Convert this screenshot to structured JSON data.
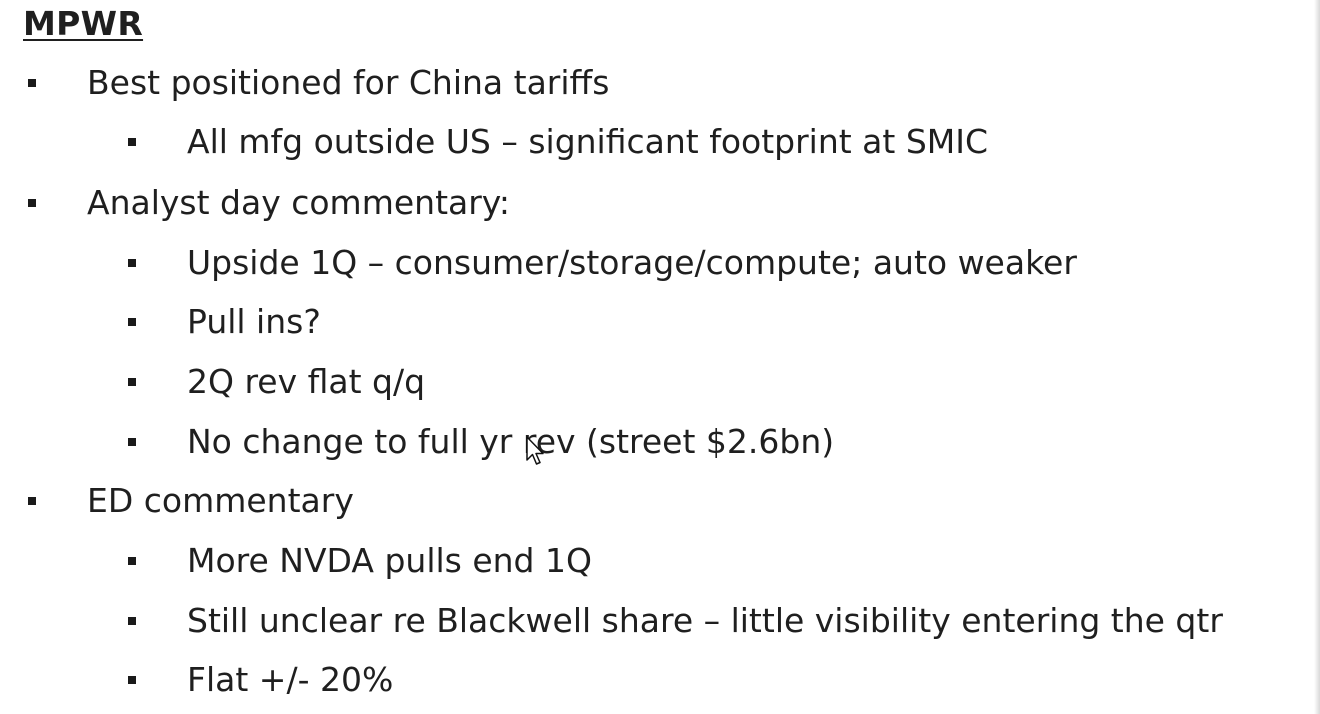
{
  "slide": {
    "title": "MPWR",
    "items": [
      {
        "level": 1,
        "text": "Best positioned for China tariffs"
      },
      {
        "level": 2,
        "text": "All mfg outside US – significant footprint at SMIC"
      },
      {
        "level": 1,
        "text": "Analyst day commentary:"
      },
      {
        "level": 2,
        "text": "Upside 1Q – consumer/storage/compute; auto weaker"
      },
      {
        "level": 2,
        "text": "Pull ins?"
      },
      {
        "level": 2,
        "text": "2Q rev flat q/q"
      },
      {
        "level": 2,
        "text": "No change to full yr rev (street $2.6bn)"
      },
      {
        "level": 1,
        "text": "ED commentary"
      },
      {
        "level": 2,
        "text": "More NVDA pulls end 1Q"
      },
      {
        "level": 2,
        "text": "Still unclear re Blackwell share – little visibility entering the qtr"
      },
      {
        "level": 2,
        "text": "Flat +/- 20%"
      }
    ]
  },
  "cursor": {
    "icon": "mouse-pointer-icon"
  }
}
